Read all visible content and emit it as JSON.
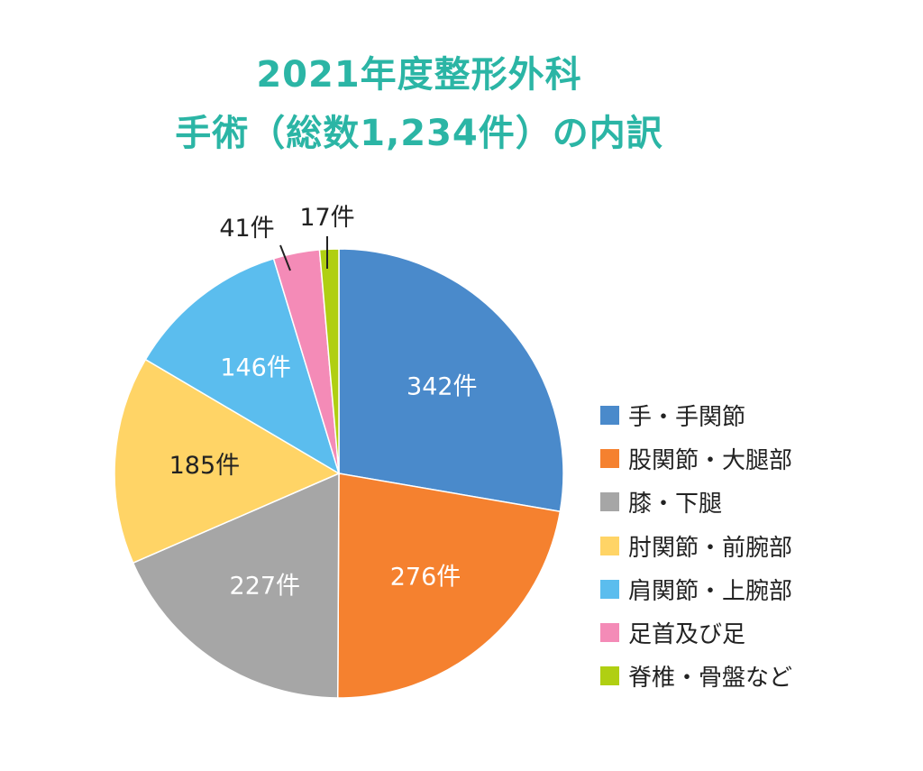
{
  "title": {
    "line1": "2021年度整形外科",
    "line2": "手術（総数1,234件）の内訳"
  },
  "chart_data": {
    "type": "pie",
    "start": "12 o'clock, clockwise",
    "slices": [
      {
        "name": "手・手関節",
        "value": 342,
        "label": "342件",
        "color": "#4a8acb",
        "label_color": "#ffffff"
      },
      {
        "name": "股関節・大腿部",
        "value": 276,
        "label": "276件",
        "color": "#f5812f",
        "label_color": "#ffffff"
      },
      {
        "name": "膝・下腿",
        "value": 227,
        "label": "227件",
        "color": "#a6a6a6",
        "label_color": "#ffffff"
      },
      {
        "name": "肘関節・前腕部",
        "value": 185,
        "label": "185件",
        "color": "#ffd466",
        "label_color": "#222222"
      },
      {
        "name": "肩関節・上腕部",
        "value": 146,
        "label": "146件",
        "color": "#5bbdee",
        "label_color": "#ffffff"
      },
      {
        "name": "足首及び足",
        "value": 41,
        "label": "41件",
        "color": "#f48bb7",
        "label_color": "#222222"
      },
      {
        "name": "脊椎・骨盤など",
        "value": 17,
        "label": "17件",
        "color": "#b0cf12",
        "label_color": "#222222"
      }
    ],
    "legend": "right"
  }
}
